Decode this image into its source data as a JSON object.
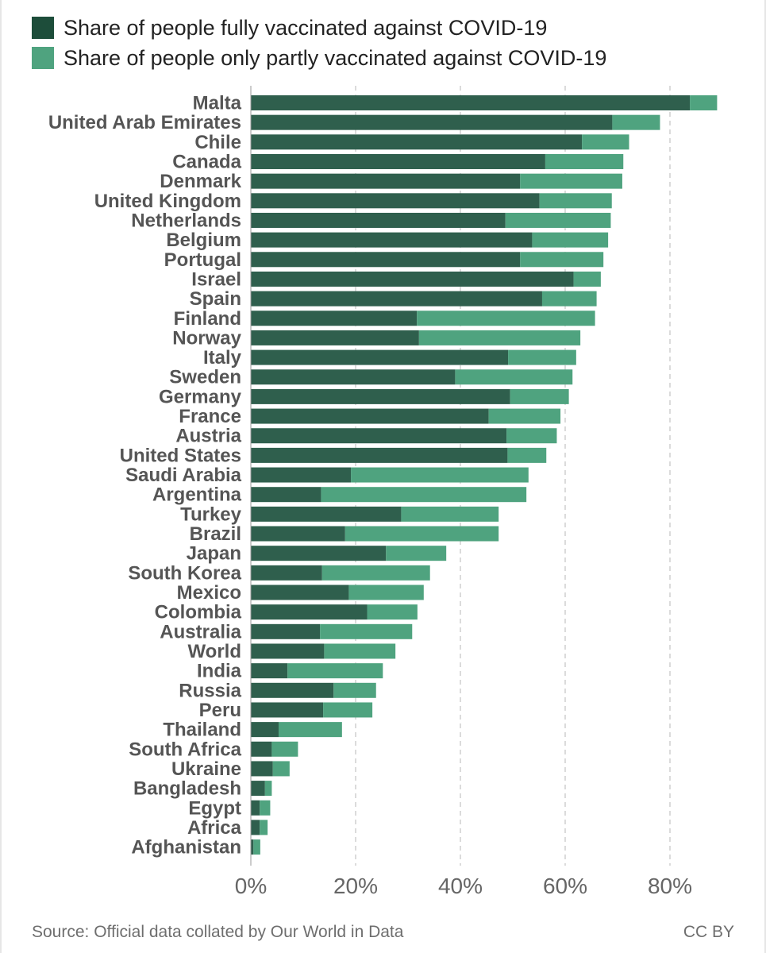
{
  "colors": {
    "full": "#2f5f4d",
    "partial": "#4fa37f",
    "legend_full": "#1d4d3a",
    "legend_partial": "#4fa37f",
    "label": "#555555",
    "tick": "#666666",
    "grid": "#cfcfcf"
  },
  "legend": {
    "full_label": "Share of people fully vaccinated against COVID-19",
    "partial_label": "Share of people only partly vaccinated against COVID-19"
  },
  "footer": {
    "source": "Source: Official data collated by Our World in Data",
    "license": "CC BY"
  },
  "chart_data": {
    "type": "bar",
    "orientation": "horizontal",
    "stacked": true,
    "title": "",
    "xlabel": "",
    "ylabel": "",
    "xlim": [
      0,
      92
    ],
    "x_ticks": [
      0,
      20,
      40,
      60,
      80
    ],
    "x_tick_labels": [
      "0%",
      "20%",
      "40%",
      "60%",
      "80%"
    ],
    "grid": "vertical dashed",
    "legend_position": "top-left",
    "categories": [
      "Malta",
      "United Arab Emirates",
      "Chile",
      "Canada",
      "Denmark",
      "United Kingdom",
      "Netherlands",
      "Belgium",
      "Portugal",
      "Israel",
      "Spain",
      "Finland",
      "Norway",
      "Italy",
      "Sweden",
      "Germany",
      "France",
      "Austria",
      "United States",
      "Saudi Arabia",
      "Argentina",
      "Turkey",
      "Brazil",
      "Japan",
      "South Korea",
      "Mexico",
      "Colombia",
      "Australia",
      "World",
      "India",
      "Russia",
      "Peru",
      "Thailand",
      "South Africa",
      "Ukraine",
      "Bangladesh",
      "Egypt",
      "Africa",
      "Afghanistan"
    ],
    "series": [
      {
        "name": "Share of people fully vaccinated against COVID-19",
        "values": [
          83.8,
          69.0,
          63.2,
          56.2,
          51.4,
          55.1,
          48.6,
          53.7,
          51.4,
          61.6,
          55.6,
          31.7,
          32.1,
          49.1,
          39.0,
          49.5,
          45.4,
          48.8,
          49.0,
          19.1,
          13.4,
          28.7,
          18.0,
          25.8,
          13.6,
          18.7,
          22.2,
          13.2,
          14.0,
          7.0,
          15.8,
          13.8,
          5.3,
          4.0,
          4.2,
          2.7,
          1.7,
          1.7,
          0.5
        ]
      },
      {
        "name": "Share of people only partly vaccinated against COVID-19",
        "values": [
          5.2,
          9.1,
          9.0,
          14.9,
          19.5,
          13.8,
          20.1,
          14.5,
          15.9,
          5.2,
          10.4,
          34.0,
          30.8,
          13.0,
          22.4,
          11.2,
          13.7,
          9.6,
          7.4,
          33.9,
          39.2,
          18.6,
          29.3,
          11.5,
          20.6,
          14.3,
          9.6,
          17.6,
          13.6,
          18.2,
          8.1,
          9.4,
          12.1,
          5.0,
          3.2,
          1.3,
          2.0,
          1.5,
          1.3
        ]
      }
    ]
  }
}
